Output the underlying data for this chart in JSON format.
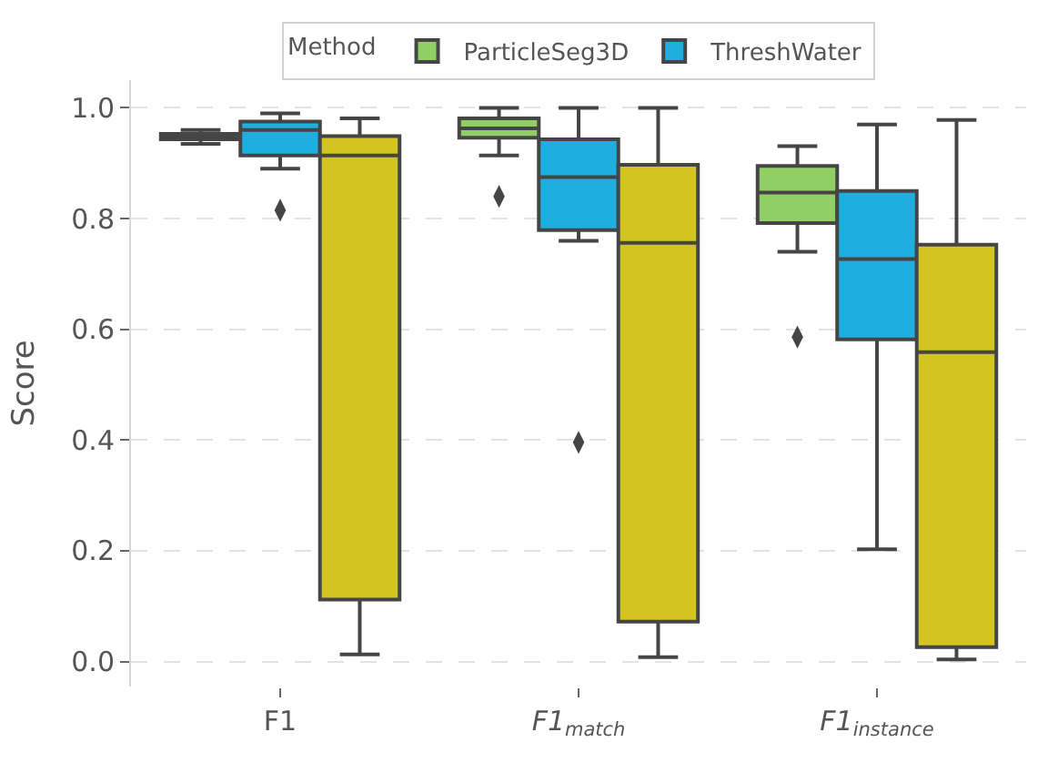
{
  "chart_data": {
    "type": "box",
    "categories": [
      "F1",
      "F1$_{match}$",
      "F1$_{instance}$"
    ],
    "ylabel": "Score",
    "legend_title": "Method",
    "series": [
      {
        "name": "ParticleSeg3D",
        "color": "#91cf64",
        "boxes": [
          {
            "low": 0.935,
            "q1": 0.943,
            "median": 0.948,
            "q3": 0.953,
            "high": 0.96
          },
          {
            "low": 0.914,
            "q1": 0.946,
            "median": 0.963,
            "q3": 0.981,
            "high": 1.0,
            "outliers": [
              0.84
            ]
          },
          {
            "low": 0.74,
            "q1": 0.792,
            "median": 0.847,
            "q3": 0.895,
            "high": 0.931,
            "outliers": [
              0.586
            ]
          }
        ]
      },
      {
        "name": "ThreshWater",
        "color": "#1faee0",
        "boxes": [
          {
            "low": 0.89,
            "q1": 0.914,
            "median": 0.96,
            "q3": 0.975,
            "high": 0.99,
            "outliers": [
              0.815
            ]
          },
          {
            "low": 0.76,
            "q1": 0.779,
            "median": 0.875,
            "q3": 0.943,
            "high": 1.0,
            "outliers": [
              0.396
            ]
          },
          {
            "low": 0.203,
            "q1": 0.582,
            "median": 0.727,
            "q3": 0.85,
            "high": 0.97
          }
        ]
      },
      {
        "color": "#d3c41f",
        "boxes": [
          {
            "low": 0.013,
            "q1": 0.112,
            "median": 0.914,
            "q3": 0.949,
            "high": 0.981
          },
          {
            "low": 0.008,
            "q1": 0.072,
            "median": 0.756,
            "q3": 0.897,
            "high": 1.0
          },
          {
            "low": 0.004,
            "q1": 0.026,
            "median": 0.559,
            "q3": 0.753,
            "high": 0.978
          }
        ]
      }
    ],
    "ylim": [
      -0.045,
      1.05
    ],
    "yticks": [
      {
        "value": 0,
        "label": "0.0"
      },
      0.2,
      0.4,
      0.6,
      0.8,
      {
        "value": 1,
        "label": "1.0"
      }
    ],
    "grid": "y",
    "legend": "top",
    "marker": "diamond"
  }
}
